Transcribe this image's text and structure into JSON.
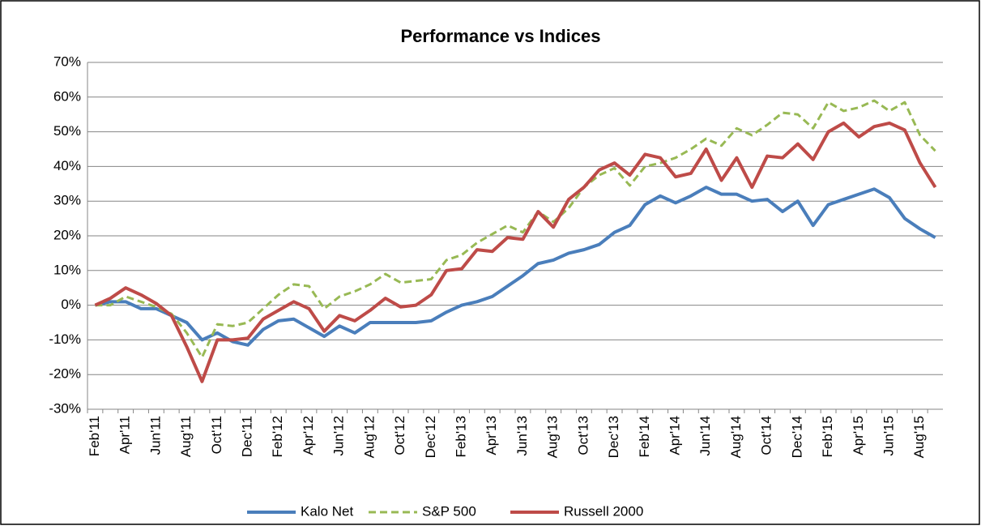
{
  "chart_data": {
    "type": "line",
    "title": "Performance vs Indices",
    "categories": [
      "Feb'11",
      null,
      "Apr'11",
      null,
      "Jun'11",
      null,
      "Aug'11",
      null,
      "Oct'11",
      null,
      "Dec'11",
      null,
      "Feb'12",
      null,
      "Apr'12",
      null,
      "Jun'12",
      null,
      "Aug'12",
      null,
      "Oct'12",
      null,
      "Dec'12",
      null,
      "Feb'13",
      null,
      "Apr'13",
      null,
      "Jun'13",
      null,
      "Aug'13",
      null,
      "Oct'13",
      null,
      "Dec'13",
      null,
      "Feb'14",
      null,
      "Apr'14",
      null,
      "Jun'14",
      null,
      "Aug'14",
      null,
      "Oct'14",
      null,
      "Dec'14",
      null,
      "Feb'15",
      null,
      "Apr'15",
      null,
      "Jun'15",
      null,
      "Aug'15",
      null
    ],
    "series": [
      {
        "name": "Kalo Net",
        "color": "#4a7ebb",
        "line_style": "solid",
        "values": [
          0,
          1,
          1,
          -1,
          -1,
          -3,
          -5,
          -10,
          -8,
          -10.5,
          -11.5,
          -7,
          -4.5,
          -4,
          -6.5,
          -9,
          -6,
          -8,
          -5,
          -5,
          -5,
          -5,
          -4.5,
          -2,
          0,
          1,
          2.5,
          5.5,
          8.5,
          12,
          13,
          15,
          16,
          17.5,
          21,
          23,
          29,
          31.5,
          29.5,
          31.5,
          34,
          32,
          32,
          30,
          30.5,
          27,
          30,
          23,
          29,
          30.5,
          32,
          33.5,
          31,
          25,
          22,
          19.5
        ]
      },
      {
        "name": "S&P 500",
        "color": "#98b954",
        "line_style": "dashed",
        "values": [
          0,
          0,
          2.5,
          1,
          -0.5,
          -2.5,
          -8,
          -15,
          -5.5,
          -6,
          -5,
          -1,
          3,
          6,
          5.5,
          -1,
          2.5,
          4,
          6,
          9,
          6.5,
          7,
          7.5,
          13,
          14.5,
          18,
          20.5,
          23,
          21,
          27,
          24,
          28,
          34,
          37.5,
          39.5,
          34.5,
          40,
          41,
          42.5,
          45,
          48,
          46,
          51,
          49,
          52,
          55.5,
          55,
          51,
          58.5,
          56,
          57,
          59,
          56,
          58.5,
          49,
          44.5
        ]
      },
      {
        "name": "Russell 2000",
        "color": "#be4b48",
        "line_style": "solid",
        "values": [
          0,
          2,
          5,
          3,
          0.5,
          -3,
          -12,
          -22,
          -10,
          -10,
          -9.5,
          -4,
          -1.5,
          1,
          -1,
          -7.5,
          -3,
          -4.5,
          -1.5,
          2,
          -0.5,
          0,
          3,
          10,
          10.5,
          16,
          15.5,
          19.5,
          19,
          27,
          22.5,
          30.5,
          34,
          39,
          41,
          37.5,
          43.5,
          42.5,
          37,
          38,
          45,
          36,
          42.5,
          34,
          43,
          42.5,
          46.5,
          42,
          50,
          52.5,
          48.5,
          51.5,
          52.5,
          50.5,
          41,
          34
        ]
      }
    ],
    "ylim": [
      -30,
      70
    ],
    "yticks": [
      {
        "value": -30,
        "label": "-30%"
      },
      {
        "value": -20,
        "label": "-20%"
      },
      {
        "value": -10,
        "label": "-10%"
      },
      {
        "value": 0,
        "label": "0%"
      },
      {
        "value": 10,
        "label": "10%"
      },
      {
        "value": 20,
        "label": "20%"
      },
      {
        "value": 30,
        "label": "30%"
      },
      {
        "value": 40,
        "label": "40%"
      },
      {
        "value": 50,
        "label": "50%"
      },
      {
        "value": 60,
        "label": "60%"
      },
      {
        "value": 70,
        "label": "70%"
      }
    ],
    "grid": true,
    "legend": "bottom"
  }
}
